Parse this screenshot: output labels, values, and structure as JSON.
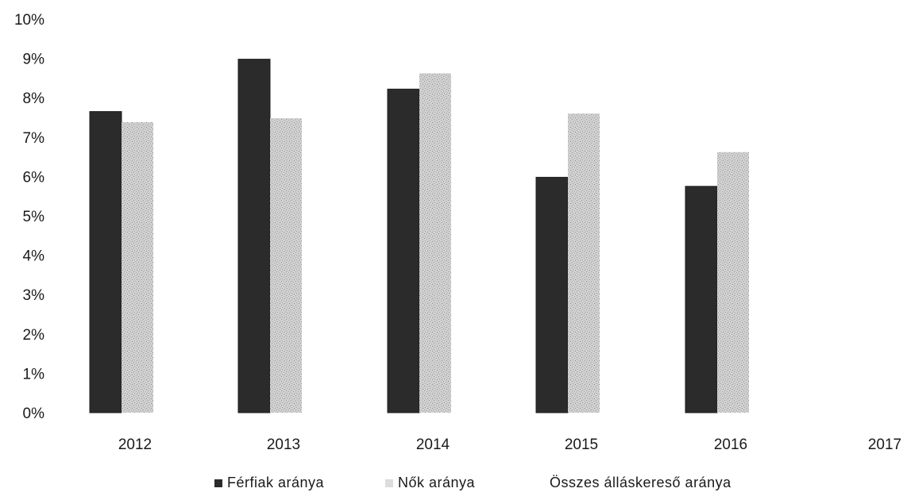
{
  "chart_data": {
    "type": "bar",
    "categories": [
      "2012",
      "2013",
      "2014",
      "2015",
      "2016",
      "2017"
    ],
    "series": [
      {
        "name": "Férfiak aránya",
        "values": [
          7.65,
          8.98,
          8.22,
          5.98,
          5.75,
          null
        ],
        "color": "#2b2b2b"
      },
      {
        "name": "Nők aránya",
        "values": [
          7.38,
          7.48,
          8.62,
          7.6,
          6.62,
          null
        ],
        "color": "#c9c9c9"
      },
      {
        "name": "Összes álláskereső aránya",
        "values": [
          null,
          null,
          null,
          null,
          null,
          null
        ],
        "color": "#ffffff"
      }
    ],
    "yticks": [
      "0%",
      "1%",
      "2%",
      "3%",
      "4%",
      "5%",
      "6%",
      "7%",
      "8%",
      "9%",
      "10%"
    ],
    "ylim": [
      0,
      10
    ],
    "grid": false,
    "legend": "bottom"
  }
}
